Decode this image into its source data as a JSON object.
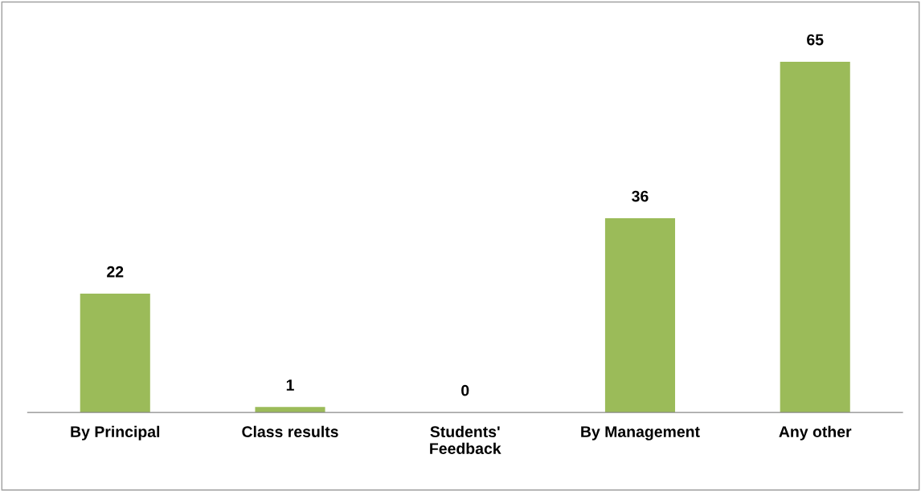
{
  "chart_data": {
    "type": "bar",
    "categories": [
      "By Principal",
      "Class results",
      "Students'\nFeedback",
      "By Management",
      "Any other"
    ],
    "values": [
      22,
      1,
      0,
      36,
      65
    ],
    "color": "#9bbb59",
    "data_labels": true,
    "tick_labels": "x",
    "grid": false
  }
}
